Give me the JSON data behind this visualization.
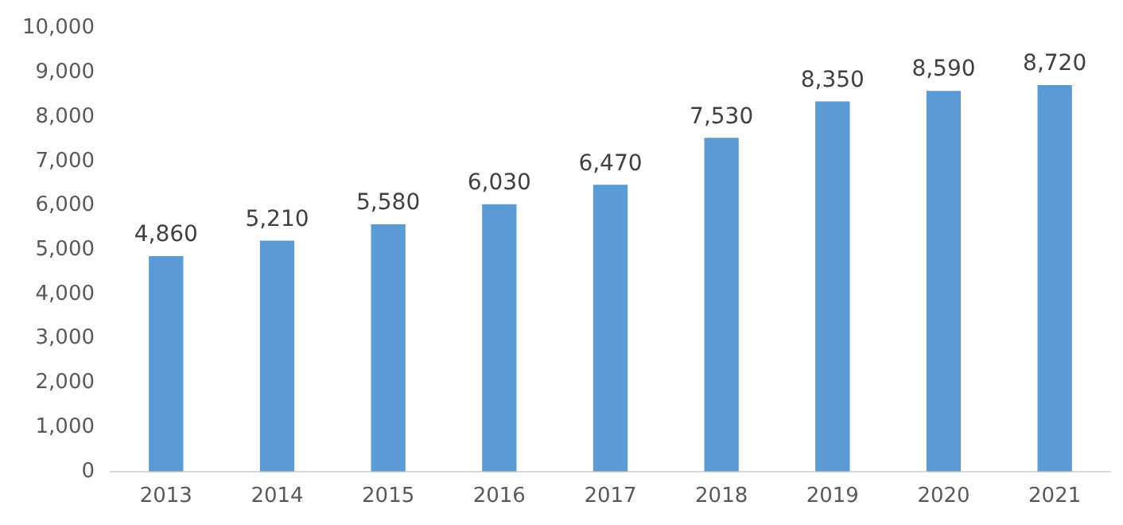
{
  "chart_data": {
    "type": "bar",
    "categories": [
      "2013",
      "2014",
      "2015",
      "2016",
      "2017",
      "2018",
      "2019",
      "2020",
      "2021"
    ],
    "values": [
      4860,
      5210,
      5580,
      6030,
      6470,
      7530,
      8350,
      8590,
      8720
    ],
    "color": "#5b9bd5",
    "ylim": [
      0,
      10000
    ],
    "yticks": [
      {
        "value": 0,
        "label": "0"
      },
      {
        "value": 1000,
        "label": "1,000"
      },
      {
        "value": 2000,
        "label": "2,000"
      },
      {
        "value": 3000,
        "label": "3,000"
      },
      {
        "value": 4000,
        "label": "4,000"
      },
      {
        "value": 5000,
        "label": "5,000"
      },
      {
        "value": 6000,
        "label": "6,000"
      },
      {
        "value": 7000,
        "label": "7,000"
      },
      {
        "value": 8000,
        "label": "8,000"
      },
      {
        "value": 9000,
        "label": "9,000"
      },
      {
        "value": 10000,
        "label": "10,000"
      }
    ],
    "value_labels": [
      "4,860",
      "5,210",
      "5,580",
      "6,030",
      "6,470",
      "7,530",
      "8,350",
      "8,590",
      "8,720"
    ],
    "grid": false,
    "legend": false
  }
}
